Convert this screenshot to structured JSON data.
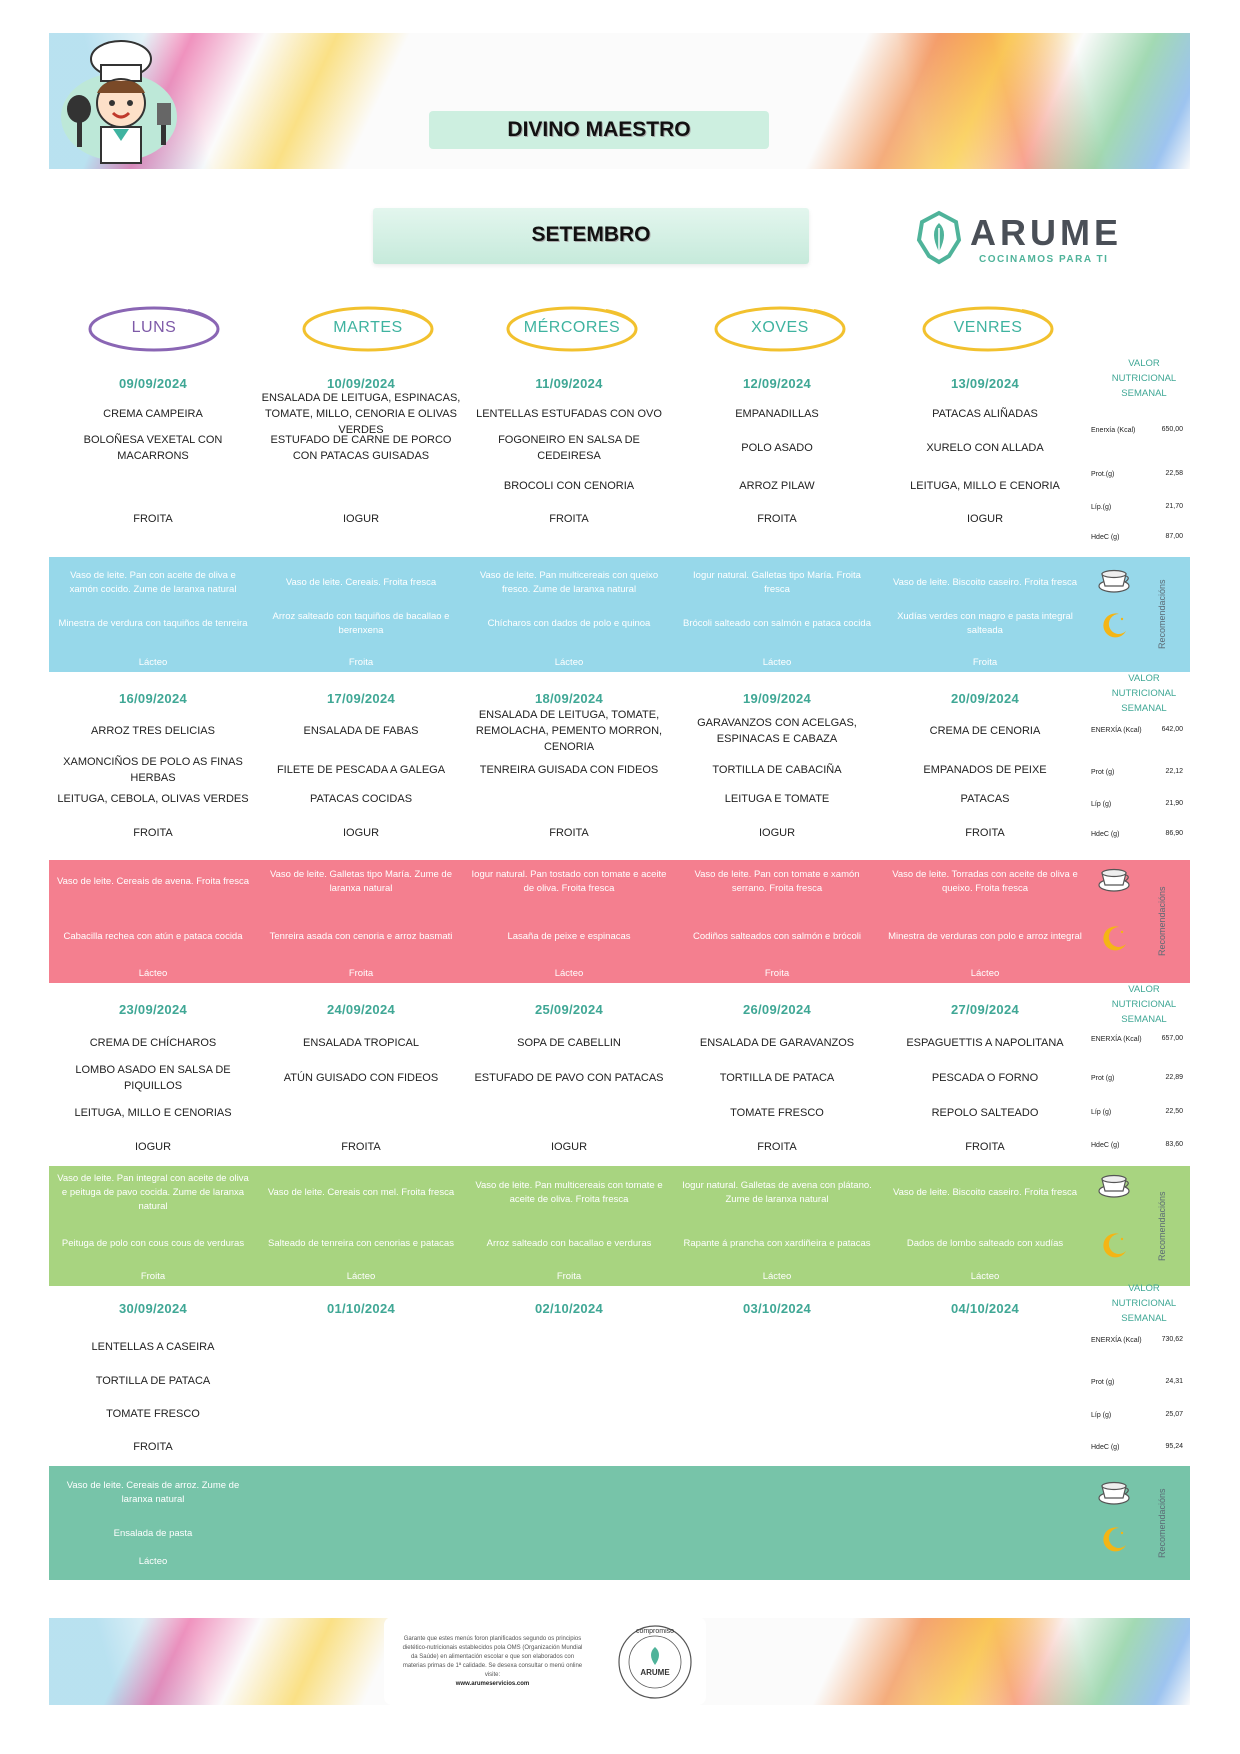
{
  "header": {
    "school": "DIVINO MAESTRO",
    "month": "SETEMBRO",
    "brand": {
      "name": "ARUME",
      "tagline": "COCINAMOS PARA TI"
    }
  },
  "days": [
    "LUNS",
    "MARTES",
    "MÉRCORES",
    "XOVES",
    "VENRES"
  ],
  "nutrition_title": [
    "VALOR",
    "NUTRICIONAL",
    "SEMANAL"
  ],
  "recommendations_label": "Recomendacións",
  "weeks": [
    {
      "band_color": "#97d8ea",
      "dates": [
        "09/09/2024",
        "10/09/2024",
        "11/09/2024",
        "12/09/2024",
        "13/09/2024"
      ],
      "rows": [
        [
          "CREMA CAMPEIRA",
          "ENSALADA DE LEITUGA, ESPINACAS, TOMATE, MILLO, CENORIA E OLIVAS VERDES",
          "LENTELLAS ESTUFADAS CON OVO",
          "EMPANADILLAS",
          "PATACAS ALIÑADAS"
        ],
        [
          "BOLOÑESA VEXETAL CON MACARRONS",
          "ESTUFADO DE CARNE DE PORCO CON PATACAS GUISADAS",
          "FOGONEIRO EN SALSA DE CEDEIRESA",
          "POLO ASADO",
          "XURELO CON ALLADA"
        ],
        [
          "",
          "",
          "BROCOLI CON CENORIA",
          "ARROZ PILAW",
          "LEITUGA, MILLO E CENORIA"
        ],
        [
          "FROITA",
          "IOGUR",
          "FROITA",
          "FROITA",
          "IOGUR"
        ]
      ],
      "nutrition": [
        {
          "label": "Enerxía (Kcal)",
          "value": "650,00"
        },
        {
          "label": "Prot.(g)",
          "value": "22,58"
        },
        {
          "label": "Líp.(g)",
          "value": "21,70"
        },
        {
          "label": "HdeC (g)",
          "value": "87,00"
        }
      ],
      "breakfast": [
        "Vaso de leite. Pan con aceite de oliva e xamón cocido. Zume de laranxa natural",
        "Vaso de leite. Cereais. Froita fresca",
        "Vaso de leite. Pan multicereais con queixo fresco. Zume de laranxa natural",
        "Iogur natural. Galletas tipo María. Froita fresca",
        "Vaso de leite. Biscoito caseiro. Froita fresca"
      ],
      "dinner": [
        "Minestra de verdura con taquiños de tenreira",
        "Arroz salteado con taquiños de bacallao e berenxena",
        "Chícharos con dados de polo e quinoa",
        "Brócoli salteado con salmón e pataca cocida",
        "Xudías verdes con magro e pasta integral salteada"
      ],
      "group": [
        "Lácteo",
        "Froita",
        "Lácteo",
        "Lácteo",
        "Froita"
      ]
    },
    {
      "band_color": "#f47f8f",
      "dates": [
        "16/09/2024",
        "17/09/2024",
        "18/09/2024",
        "19/09/2024",
        "20/09/2024"
      ],
      "rows": [
        [
          "ARROZ TRES DELICIAS",
          "ENSALADA DE FABAS",
          "ENSALADA DE LEITUGA, TOMATE, REMOLACHA, PEMENTO MORRON, CENORIA",
          "GARAVANZOS CON ACELGAS, ESPINACAS E CABAZA",
          "CREMA DE CENORIA"
        ],
        [
          "XAMONCIÑOS DE POLO AS FINAS HERBAS",
          "FILETE DE PESCADA A GALEGA",
          "TENREIRA GUISADA CON FIDEOS",
          "TORTILLA DE CABACIÑA",
          "EMPANADOS DE PEIXE"
        ],
        [
          "LEITUGA, CEBOLA, OLIVAS VERDES",
          "PATACAS COCIDAS",
          "",
          "LEITUGA E TOMATE",
          "PATACAS"
        ],
        [
          "FROITA",
          "IOGUR",
          "FROITA",
          "IOGUR",
          "FROITA"
        ]
      ],
      "nutrition": [
        {
          "label": "ENERXÍA (Kcal)",
          "value": "642,00"
        },
        {
          "label": "Prot (g)",
          "value": "22,12"
        },
        {
          "label": "Líp (g)",
          "value": "21,90"
        },
        {
          "label": "HdeC (g)",
          "value": "86,90"
        }
      ],
      "breakfast": [
        "Vaso de leite. Cereais de avena. Froita fresca",
        "Vaso de leite. Galletas tipo María. Zume de laranxa natural",
        "Iogur natural. Pan tostado con tomate e aceite de oliva. Froita fresca",
        "Vaso de leite. Pan con tomate e xamón serrano. Froita fresca",
        "Vaso de leite. Torradas con aceite de oliva e queixo. Froita fresca"
      ],
      "dinner": [
        "Cabacilla rechea con atún e pataca cocida",
        "Tenreira asada con cenoria e arroz basmati",
        "Lasaña de peixe e espinacas",
        "Codiños salteados con salmón e brócoli",
        "Minestra de verduras con polo e arroz integral"
      ],
      "group": [
        "Lácteo",
        "Froita",
        "Lácteo",
        "Froita",
        "Lácteo"
      ]
    },
    {
      "band_color": "#a8d480",
      "dates": [
        "23/09/2024",
        "24/09/2024",
        "25/09/2024",
        "26/09/2024",
        "27/09/2024"
      ],
      "rows": [
        [
          "CREMA DE CHÍCHAROS",
          "ENSALADA TROPICAL",
          "SOPA DE CABELLIN",
          "ENSALADA DE GARAVANZOS",
          "ESPAGUETTIS A NAPOLITANA"
        ],
        [
          "LOMBO ASADO EN SALSA DE PIQUILLOS",
          "ATÚN GUISADO CON FIDEOS",
          "ESTUFADO DE PAVO CON PATACAS",
          "TORTILLA DE PATACA",
          "PESCADA O FORNO"
        ],
        [
          "LEITUGA, MILLO E CENORIAS",
          "",
          "",
          "TOMATE FRESCO",
          "REPOLO SALTEADO"
        ],
        [
          "IOGUR",
          "FROITA",
          "IOGUR",
          "FROITA",
          "FROITA"
        ]
      ],
      "nutrition": [
        {
          "label": "ENERXÍA (Kcal)",
          "value": "657,00"
        },
        {
          "label": "Prot (g)",
          "value": "22,89"
        },
        {
          "label": "Líp (g)",
          "value": "22,50"
        },
        {
          "label": "HdeC (g)",
          "value": "83,60"
        }
      ],
      "breakfast": [
        "Vaso de leite. Pan integral con aceite de oliva e peituga de pavo cocida. Zume de laranxa natural",
        "Vaso de leite. Cereais con mel. Froita fresca",
        "Vaso de leite. Pan multicereais con tomate e aceite de oliva. Froita fresca",
        "Iogur natural. Galletas de avena con plátano. Zume de laranxa natural",
        "Vaso de leite. Biscoito caseiro. Froita fresca"
      ],
      "dinner": [
        "Peituga de polo con cous cous de verduras",
        "Salteado de tenreira con cenorias e patacas",
        "Arroz salteado con bacallao e verduras",
        "Rapante á prancha con xardiñeira e patacas",
        "Dados de lombo salteado con xudías"
      ],
      "group": [
        "Froita",
        "Lácteo",
        "Froita",
        "Lácteo",
        "Lácteo"
      ]
    },
    {
      "band_color": "#77c4a9",
      "dates": [
        "30/09/2024",
        "01/10/2024",
        "02/10/2024",
        "03/10/2024",
        "04/10/2024"
      ],
      "rows": [
        [
          "LENTELLAS A CASEIRA",
          "",
          "",
          "",
          ""
        ],
        [
          "TORTILLA DE PATACA",
          "",
          "",
          "",
          ""
        ],
        [
          "TOMATE FRESCO",
          "",
          "",
          "",
          ""
        ],
        [
          "FROITA",
          "",
          "",
          "",
          ""
        ]
      ],
      "nutrition": [
        {
          "label": "ENERXÍA (Kcal)",
          "value": "730,62"
        },
        {
          "label": "Prot (g)",
          "value": "24,31"
        },
        {
          "label": "Líp (g)",
          "value": "25,07"
        },
        {
          "label": "HdeC (g)",
          "value": "95,24"
        }
      ],
      "breakfast": [
        "Vaso de leite. Cereais de arroz. Zume de laranxa natural",
        "",
        "",
        "",
        ""
      ],
      "dinner": [
        "Ensalada de pasta",
        "",
        "",
        "",
        ""
      ],
      "group": [
        "Lácteo",
        "",
        "",
        "",
        ""
      ]
    }
  ],
  "footer": {
    "note": "Garante que estes menús foron planificados segundo os principios dietético-nutricionais establecidos pola OMS (Organización Mundial da Saúde) en alimentación escolar e que son elaborados con materias primas de 1ª calidade. Se desexa consultar o menú online visite:",
    "url": "www.arumeservicios.com",
    "seal_text": "compromiso",
    "seal_brand": "ARUME"
  }
}
